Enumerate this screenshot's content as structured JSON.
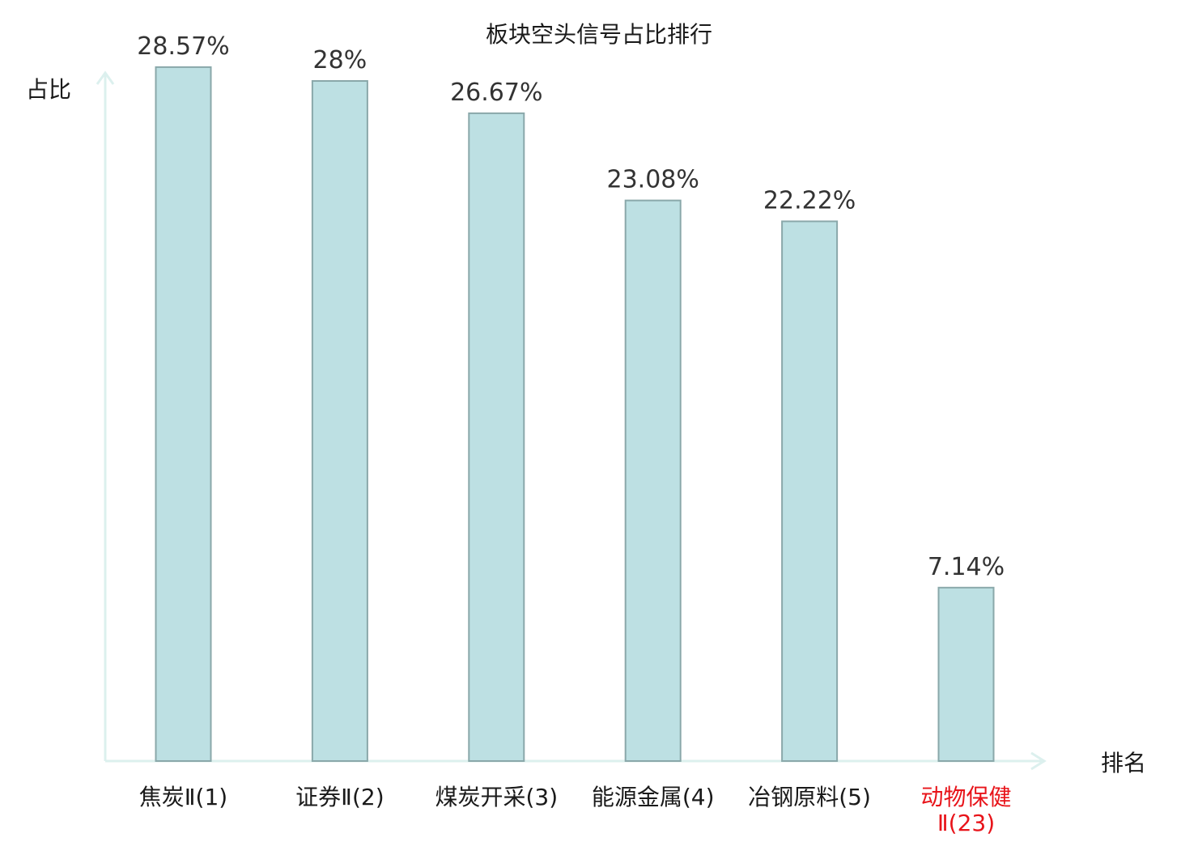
{
  "chart_data": {
    "type": "bar",
    "title": "板块空头信号占比排行",
    "ylabel": "占比",
    "xlabel": "排名",
    "ylim": [
      0,
      30
    ],
    "grid": false,
    "categories": [
      {
        "name": "焦炭Ⅱ",
        "rank": "(1)",
        "highlight": false
      },
      {
        "name": "证券Ⅱ",
        "rank": "(2)",
        "highlight": false
      },
      {
        "name": "煤炭开采",
        "rank": "(3)",
        "highlight": false
      },
      {
        "name": "能源金属",
        "rank": "(4)",
        "highlight": false
      },
      {
        "name": "冶钢原料",
        "rank": "(5)",
        "highlight": false
      },
      {
        "name": "动物保健",
        "rank": "Ⅱ(23)",
        "highlight": true
      }
    ],
    "values": [
      28.57,
      28,
      26.67,
      23.08,
      22.22,
      7.14
    ],
    "value_labels": [
      "28.57%",
      "28%",
      "26.67%",
      "23.08%",
      "22.22%",
      "7.14%"
    ],
    "colors": {
      "bar_fill": "#bde0e3",
      "bar_stroke": "#8aa8aa",
      "axis": "#dcf0ee",
      "highlight_text": "#e8141a"
    }
  }
}
